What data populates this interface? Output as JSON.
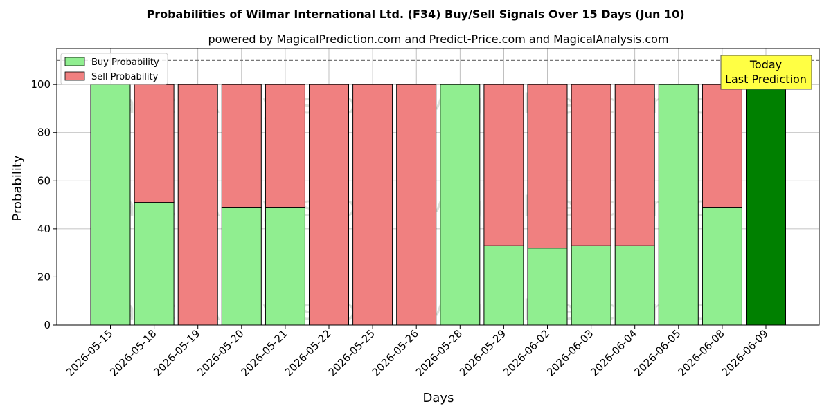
{
  "chart_data": {
    "type": "bar",
    "stacked": true,
    "title": "Probabilities of Wilmar International Ltd. (F34) Buy/Sell Signals Over 15 Days (Jun 10)",
    "subtitle": "powered by MagicalPrediction.com and Predict-Price.com and MagicalAnalysis.com",
    "xlabel": "Days",
    "ylabel": "Probability",
    "ylim": [
      0,
      115
    ],
    "yticks": [
      0,
      20,
      40,
      60,
      80,
      100
    ],
    "reference_line": 110,
    "grid": true,
    "legend_position": "top-left",
    "categories": [
      "2026-05-15",
      "2026-05-18",
      "2026-05-19",
      "2026-05-20",
      "2026-05-21",
      "2026-05-22",
      "2026-05-25",
      "2026-05-26",
      "2026-05-28",
      "2026-05-29",
      "2026-06-02",
      "2026-06-03",
      "2026-06-04",
      "2026-06-05",
      "2026-06-08",
      "2026-06-09"
    ],
    "series": [
      {
        "name": "Buy Probability",
        "color": "#90ee90",
        "values": [
          100,
          51,
          0,
          49,
          49,
          0,
          0,
          0,
          100,
          33,
          32,
          33,
          33,
          100,
          49,
          100
        ]
      },
      {
        "name": "Sell Probability",
        "color": "#f08080",
        "values": [
          0,
          49,
          100,
          51,
          51,
          100,
          100,
          100,
          0,
          67,
          68,
          67,
          67,
          0,
          51,
          0
        ]
      }
    ],
    "highlight": {
      "index": 15,
      "color": "#008000"
    },
    "annotation": {
      "line1": "Today",
      "line2": "Last Prediction",
      "color": "#ffff44"
    },
    "watermarks": [
      "MagicalAnalysis.com",
      "MagicalPrediction.com"
    ]
  }
}
